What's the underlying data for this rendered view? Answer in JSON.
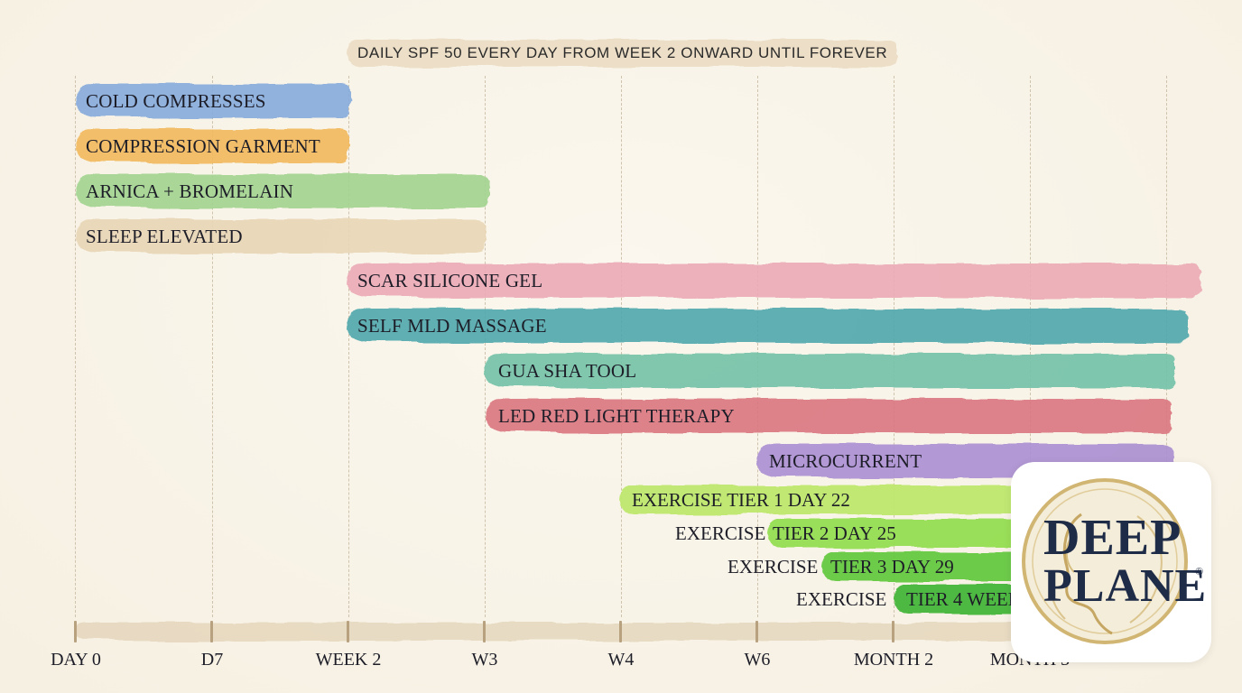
{
  "banner": "DAILY SPF 50 EVERY DAY FROM WEEK 2 ONWARD UNTIL FOREVER",
  "axis_ticks": [
    "DAY 0",
    "D7",
    "WEEK 2",
    "W3",
    "W4",
    "W6",
    "MONTH 2",
    "MONTH 3"
  ],
  "bars": [
    {
      "label": "COLD COMPRESSES",
      "start": "DAY 0",
      "end": "WEEK 2",
      "color": "#7fa6d9"
    },
    {
      "label": "COMPRESSION GARMENT",
      "start": "DAY 0",
      "end": "WEEK 2",
      "color": "#f0b65a"
    },
    {
      "label": "ARNICA + BROMELAIN",
      "start": "DAY 0",
      "end": "W3",
      "color": "#9fd08e"
    },
    {
      "label": "SLEEP ELEVATED",
      "start": "DAY 0",
      "end": "W3",
      "color": "#e7d3b2"
    },
    {
      "label": "SCAR SILICONE GEL",
      "start": "WEEK 2",
      "end": "beyond MONTH 3",
      "color": "#eaa3b0"
    },
    {
      "label": "SELF MLD MASSAGE",
      "start": "WEEK 2",
      "end": "beyond MONTH 3",
      "color": "#4aa3a8"
    },
    {
      "label": "GUA SHA TOOL",
      "start": "W3",
      "end": "beyond MONTH 3",
      "color": "#6dbfa4"
    },
    {
      "label": "LED RED LIGHT THERAPY",
      "start": "W3",
      "end": "beyond MONTH 3",
      "color": "#d9707a"
    },
    {
      "label": "MICROCURRENT",
      "start": "W6",
      "end": "beyond MONTH 3",
      "color": "#a98bd0"
    }
  ],
  "exercises": [
    {
      "prefix": "",
      "label": "EXERCISE TIER 1 DAY 22",
      "color": "#b8e665"
    },
    {
      "prefix": "EXERCISE",
      "label": "TIER 2 DAY 25",
      "color": "#8fdc4a"
    },
    {
      "prefix": "EXERCISE",
      "label": "TIER 3 DAY 29",
      "color": "#5fc63a"
    },
    {
      "prefix": "EXERCISE",
      "label": "TIER 4 WEEK 6",
      "color": "#3cb334"
    }
  ],
  "logo": {
    "line1": "DEEP",
    "line2": "PLANE",
    "mark": "®",
    "gold": "#c9a95a",
    "navy": "#1f2c48"
  }
}
